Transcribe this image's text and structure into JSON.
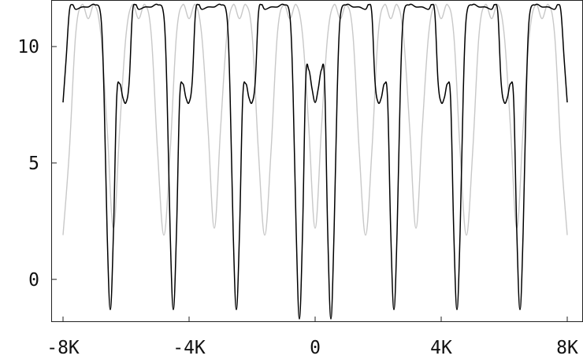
{
  "chart_data": {
    "type": "line",
    "title": "",
    "xlabel": "",
    "ylabel": "",
    "xlim": [
      -8000,
      8000
    ],
    "ylim": [
      -1.8,
      12.0
    ],
    "x_ticks": [
      -8000,
      -4000,
      0,
      4000,
      8000
    ],
    "x_tick_labels": [
      "-8K",
      "-4K",
      "0",
      "4K",
      "8K"
    ],
    "y_ticks": [
      0,
      5,
      10
    ],
    "y_tick_labels": [
      "0",
      "5",
      "10"
    ],
    "grid": false,
    "legend": "none",
    "series": [
      {
        "color": "#c8c8c8",
        "x": [
          -8000,
          -7800,
          -7600,
          -7400,
          -7200,
          -7000,
          -6800,
          -6600,
          -6400,
          -6200,
          -6000,
          -5800,
          -5600,
          -5400,
          -5200,
          -5000,
          -4800,
          -4600,
          -4400,
          -4200,
          -4000,
          -3800,
          -3600,
          -3400,
          -3200,
          -3000,
          -2800,
          -2600,
          -2400,
          -2200,
          -2000,
          -1800,
          -1600,
          -1400,
          -1200,
          -1000,
          -800,
          -600,
          -400,
          -200,
          0,
          200,
          400,
          600,
          800,
          1000,
          1200,
          1400,
          1600,
          1800,
          2000,
          2200,
          2400,
          2600,
          2800,
          3000,
          3200,
          3400,
          3600,
          3800,
          4000,
          4200,
          4400,
          4600,
          4800,
          5000,
          5200,
          5400,
          5600,
          5800,
          6000,
          6200,
          6400,
          6600,
          6800,
          7000,
          7200,
          7400,
          7600,
          7800,
          8000
        ],
        "y": [
          1.9,
          5.5,
          10.5,
          11.8,
          11.2,
          11.8,
          10.5,
          6.5,
          2.2,
          6.5,
          10.5,
          11.8,
          11.2,
          11.8,
          10.5,
          5.5,
          1.9,
          5.5,
          10.5,
          11.8,
          11.2,
          11.8,
          10.5,
          6.5,
          2.2,
          6.5,
          10.5,
          11.8,
          11.2,
          11.8,
          10.5,
          5.5,
          1.9,
          5.5,
          10.5,
          11.8,
          11.2,
          11.8,
          10.5,
          6.5,
          2.2,
          6.5,
          10.5,
          11.8,
          11.2,
          11.8,
          10.5,
          5.5,
          1.9,
          5.5,
          10.5,
          11.8,
          11.2,
          11.8,
          10.5,
          6.5,
          2.2,
          6.5,
          10.5,
          11.8,
          11.2,
          11.8,
          10.5,
          5.5,
          1.9,
          5.5,
          10.5,
          11.8,
          11.2,
          11.8,
          10.5,
          6.5,
          2.2,
          6.5,
          10.5,
          11.8,
          11.2,
          11.8,
          10.5,
          5.5,
          1.9
        ]
      },
      {
        "color": "#000000",
        "x": [
          -8000,
          -7900,
          -7800,
          -7700,
          -7600,
          -7400,
          -7200,
          -7000,
          -6800,
          -6700,
          -6600,
          -6500,
          -6400,
          -6300,
          -6200,
          -6100,
          -6000,
          -5900,
          -5800,
          -5700,
          -5600,
          -5400,
          -5200,
          -5000,
          -4800,
          -4700,
          -4600,
          -4500,
          -4400,
          -4300,
          -4200,
          -4100,
          -4000,
          -3900,
          -3800,
          -3700,
          -3600,
          -3400,
          -3200,
          -3000,
          -2800,
          -2700,
          -2600,
          -2500,
          -2400,
          -2300,
          -2200,
          -2100,
          -2000,
          -1900,
          -1800,
          -1700,
          -1600,
          -1400,
          -1200,
          -1000,
          -800,
          -700,
          -600,
          -500,
          -400,
          -300,
          -200,
          -100,
          0,
          100,
          200,
          300,
          400,
          500,
          600,
          700,
          800,
          1000,
          1200,
          1400,
          1600,
          1700,
          1800,
          1900,
          2000,
          2100,
          2200,
          2300,
          2400,
          2500,
          2600,
          2700,
          2800,
          3000,
          3200,
          3400,
          3600,
          3700,
          3800,
          3900,
          4000,
          4100,
          4200,
          4300,
          4400,
          4500,
          4600,
          4700,
          4800,
          5000,
          5200,
          5400,
          5600,
          5700,
          5800,
          5900,
          6000,
          6100,
          6200,
          6300,
          6400,
          6500,
          6600,
          6700,
          6800,
          7000,
          7200,
          7400,
          7600,
          7700,
          7800,
          7900,
          8000
        ],
        "y": [
          7.6,
          9.5,
          11.5,
          11.8,
          11.6,
          11.7,
          11.7,
          11.8,
          11.3,
          8.0,
          2.0,
          -1.3,
          2.0,
          7.7,
          8.4,
          7.8,
          7.6,
          8.5,
          11.4,
          11.8,
          11.6,
          11.7,
          11.7,
          11.8,
          11.3,
          8.0,
          2.0,
          -1.3,
          2.0,
          7.7,
          8.4,
          7.8,
          7.6,
          8.5,
          11.4,
          11.8,
          11.6,
          11.7,
          11.7,
          11.8,
          11.3,
          8.0,
          2.0,
          -1.3,
          2.0,
          7.7,
          8.4,
          7.8,
          7.6,
          8.5,
          11.4,
          11.8,
          11.6,
          11.7,
          11.7,
          11.8,
          11.3,
          8.0,
          2.0,
          -1.7,
          2.0,
          8.5,
          9.0,
          8.2,
          7.6,
          8.2,
          9.0,
          8.5,
          2.0,
          -1.7,
          2.0,
          8.0,
          11.3,
          11.8,
          11.7,
          11.7,
          11.6,
          11.8,
          11.4,
          8.5,
          7.6,
          7.8,
          8.4,
          7.7,
          2.0,
          -1.3,
          2.0,
          8.0,
          11.3,
          11.8,
          11.7,
          11.7,
          11.6,
          11.8,
          11.4,
          8.5,
          7.6,
          7.8,
          8.4,
          7.7,
          2.0,
          -1.3,
          2.0,
          8.0,
          11.3,
          11.8,
          11.7,
          11.7,
          11.6,
          11.8,
          11.4,
          8.5,
          7.6,
          7.8,
          8.4,
          7.7,
          2.0,
          -1.3,
          2.0,
          8.0,
          11.3,
          11.8,
          11.7,
          11.7,
          11.6,
          11.8,
          11.5,
          9.5,
          7.6
        ]
      }
    ]
  }
}
